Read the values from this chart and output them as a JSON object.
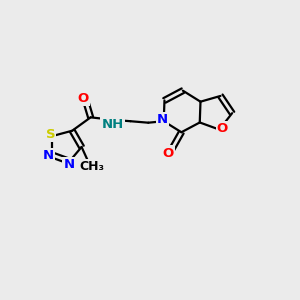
{
  "bg_color": "#ebebeb",
  "bond_color": "#000000",
  "bond_width": 1.6,
  "atom_colors": {
    "S": "#cccc00",
    "N": "#0000ff",
    "O": "#ff0000",
    "NH": "#008080",
    "C": "#000000"
  },
  "font_size_atom": 9.5,
  "font_size_methyl": 9.0
}
